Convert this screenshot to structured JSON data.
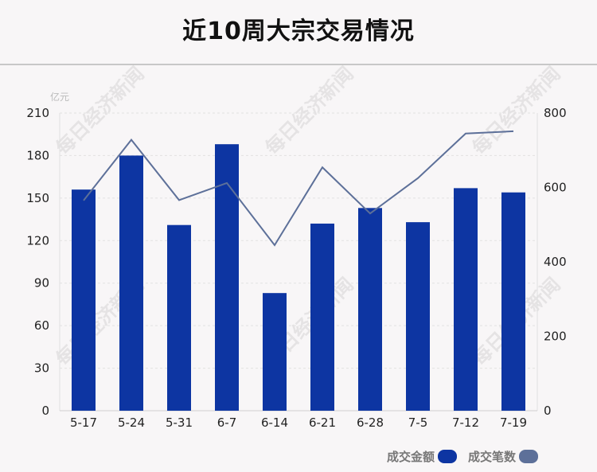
{
  "title": "近10周大宗交易情况",
  "unit_left": "亿元",
  "watermark": "每日经济新闻",
  "legend": [
    {
      "label": "成交金额",
      "color": "#0d35a2"
    },
    {
      "label": "成交笔数",
      "color": "#5d7099"
    }
  ],
  "chart_data": {
    "type": "bar",
    "categories": [
      "5-17",
      "5-24",
      "5-31",
      "6-7",
      "6-14",
      "6-21",
      "6-28",
      "7-5",
      "7-12",
      "7-19"
    ],
    "series": [
      {
        "name": "成交金额",
        "type": "bar",
        "axis": "left",
        "color": "#0d35a2",
        "values": [
          156,
          180,
          131,
          188,
          83,
          132,
          143,
          133,
          157,
          154
        ]
      },
      {
        "name": "成交笔数",
        "type": "line",
        "axis": "right",
        "color": "#5d7099",
        "values": [
          565,
          728,
          566,
          612,
          445,
          654,
          530,
          625,
          745,
          751
        ]
      }
    ],
    "y_left": {
      "min": 0,
      "max": 210,
      "ticks": [
        0,
        30,
        60,
        90,
        120,
        150,
        180,
        210
      ]
    },
    "y_right": {
      "min": 0,
      "max": 800,
      "ticks": [
        0,
        200,
        400,
        600,
        800
      ]
    },
    "grid": true,
    "legend_position": "bottom-right"
  }
}
